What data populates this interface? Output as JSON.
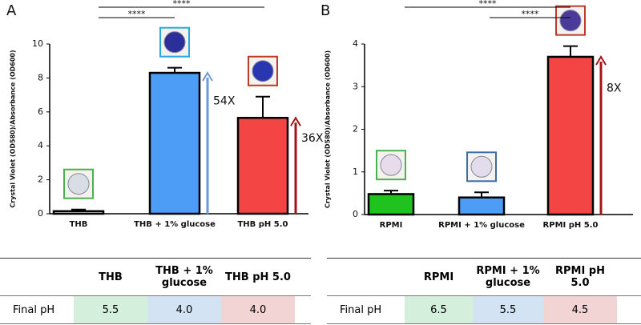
{
  "chart_data": [
    {
      "type": "bar",
      "panel": "A",
      "y_label": "Crystal Violet (OD580)/Absorbance (OD600)",
      "categories": [
        "THB",
        "THB + 1% glucose",
        "THB pH 5.0"
      ],
      "values": [
        0.15,
        8.3,
        5.65
      ],
      "errors": [
        0.1,
        0.3,
        1.25
      ],
      "colors": [
        "#e8e8e8",
        "#4d9cf5",
        "#f44545"
      ],
      "ylim": [
        0,
        10
      ],
      "yticks": [
        0,
        2,
        4,
        6,
        8,
        10
      ],
      "significance": [
        "****",
        "****"
      ],
      "fold_labels": [
        null,
        "54X",
        "36X"
      ],
      "fold_colors": [
        null,
        "#6a9bd8",
        "#a31515"
      ]
    },
    {
      "type": "bar",
      "panel": "B",
      "y_label": "Crystal Violet (OD580)/Absorbance (OD600)",
      "categories": [
        "RPMI",
        "RPMI + 1% glucose",
        "RPMI pH 5.0"
      ],
      "values": [
        0.48,
        0.4,
        3.7
      ],
      "errors": [
        0.08,
        0.12,
        0.25
      ],
      "colors": [
        "#1fc21f",
        "#4d9cf5",
        "#f44545"
      ],
      "ylim": [
        0,
        4
      ],
      "yticks": [
        0,
        1,
        2,
        3,
        4
      ],
      "significance": [
        "****",
        "****"
      ],
      "fold_labels": [
        null,
        null,
        "8X"
      ],
      "fold_colors": [
        null,
        null,
        "#a31515"
      ]
    }
  ],
  "tables": [
    {
      "header": [
        "THB",
        "THB + 1% glucose",
        "THB pH 5.0"
      ],
      "row_label": "Final pH",
      "row": [
        "5.5",
        "4.0",
        "4.0"
      ]
    },
    {
      "header": [
        "RPMI",
        "RPMI + 1% glucose",
        "RPMI pH 5.0"
      ],
      "row_label": "Final pH",
      "row": [
        "6.5",
        "5.5",
        "4.5"
      ]
    }
  ]
}
